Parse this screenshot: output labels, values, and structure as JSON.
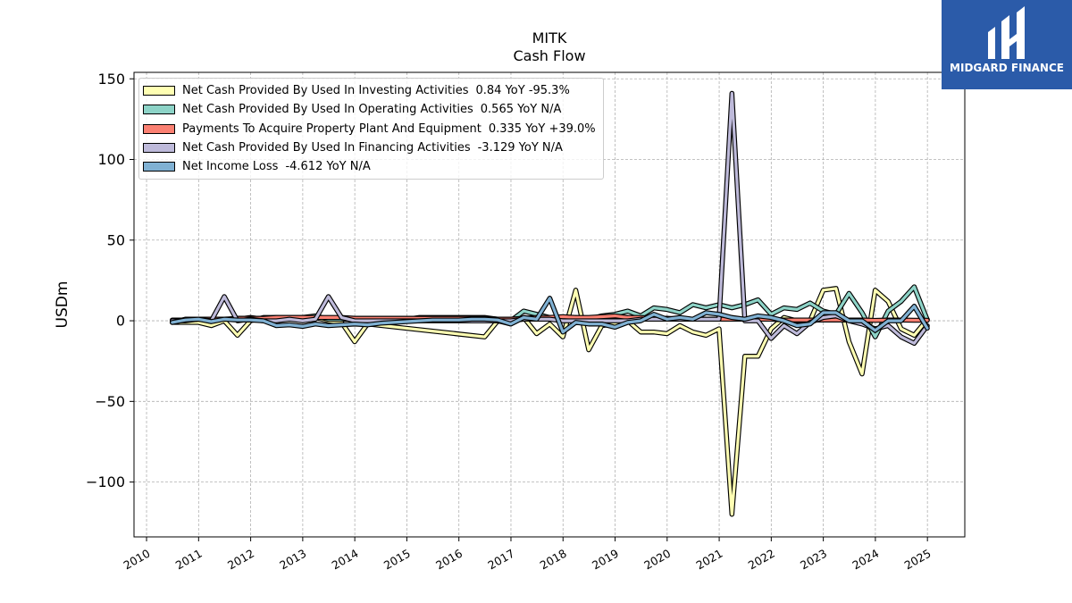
{
  "logo": {
    "text": "MIDGARD FINANCE",
    "background": "#2b5ba9",
    "icon": "midgard-m-icon"
  },
  "chart_data": {
    "type": "line",
    "title": "MITK",
    "subtitle": "Cash Flow",
    "ylabel": "USDm",
    "xlim": [
      "2009-10-05",
      "2025-09-20"
    ],
    "ylim": [
      -134,
      154
    ],
    "xtick_labels": [
      "2010",
      "2011",
      "2012",
      "2013",
      "2014",
      "2015",
      "2016",
      "2017",
      "2018",
      "2019",
      "2020",
      "2021",
      "2022",
      "2023",
      "2024",
      "2025"
    ],
    "yticks": [
      -100,
      -50,
      0,
      50,
      100,
      150
    ],
    "ytick_labels": [
      "−100",
      "−50",
      "0",
      "50",
      "100",
      "150"
    ],
    "grid": true,
    "legend_position": "top-left",
    "x": [
      "2010-06-30",
      "2010-09-30",
      "2010-12-31",
      "2011-03-31",
      "2011-06-30",
      "2011-09-30",
      "2011-12-31",
      "2012-03-31",
      "2012-06-30",
      "2012-09-30",
      "2012-12-31",
      "2013-03-31",
      "2013-06-30",
      "2013-09-30",
      "2013-12-31",
      "2014-03-31",
      "2014-06-30",
      "2014-09-30",
      "2014-12-31",
      "2015-03-31",
      "2015-06-30",
      "2015-09-30",
      "2015-12-31",
      "2016-03-31",
      "2016-06-30",
      "2016-09-30",
      "2016-12-31",
      "2017-03-31",
      "2017-06-30",
      "2017-09-30",
      "2017-12-31",
      "2018-03-31",
      "2018-06-30",
      "2018-09-30",
      "2018-12-31",
      "2019-03-31",
      "2019-06-30",
      "2019-09-30",
      "2019-12-31",
      "2020-03-31",
      "2020-06-30",
      "2020-09-30",
      "2020-12-31",
      "2021-03-31",
      "2021-06-30",
      "2021-09-30",
      "2021-12-31",
      "2022-03-31",
      "2022-06-30",
      "2022-09-30",
      "2022-12-31",
      "2023-03-31",
      "2023-06-30",
      "2023-09-30",
      "2023-12-31",
      "2024-03-31",
      "2024-06-30",
      "2024-09-30",
      "2024-12-31"
    ],
    "series": [
      {
        "name": "Net Cash Provided By Used In Investing Activities",
        "latest": "0.84 YoY -95.3%",
        "color": "#ffffb3",
        "values": [
          -1,
          -1,
          -1,
          -3,
          0,
          -9,
          0,
          2,
          2,
          1,
          2,
          2,
          0,
          -1,
          -13,
          -2,
          null,
          null,
          null,
          null,
          null,
          null,
          null,
          null,
          -10,
          0,
          -2,
          2,
          -8,
          -2,
          -10,
          19,
          -18,
          -3,
          -2,
          0,
          -7,
          -7,
          -8,
          -3,
          -7,
          -9,
          -5,
          -120,
          -22,
          -22,
          -5,
          2,
          0,
          0,
          19,
          20,
          -13,
          -33,
          19,
          12,
          -5,
          -9,
          0.84
        ]
      },
      {
        "name": "Net Cash Provided By Used In Operating Activities",
        "latest": "0.565 YoY N/A",
        "color": "#8dd3c7",
        "values": [
          -1,
          1,
          1,
          1,
          1,
          1,
          2,
          1,
          2,
          2,
          2,
          3,
          1,
          1,
          1,
          1,
          1,
          1,
          1,
          2,
          2,
          2,
          2,
          2,
          2,
          1,
          0,
          6,
          4,
          2,
          1,
          2,
          1,
          3,
          4,
          6,
          3,
          8,
          7,
          5,
          10,
          8,
          10,
          8,
          10,
          13,
          4,
          8,
          7,
          11,
          6,
          4,
          17,
          5,
          -10,
          6,
          12,
          21,
          0.565
        ]
      },
      {
        "name": "Payments To Acquire Property Plant And Equipment",
        "latest": "0.335 YoY +39.0%",
        "color": "#fb8072",
        "values": [
          0.5,
          0.5,
          1,
          1,
          1,
          1.5,
          1.5,
          1.5,
          2,
          2,
          2,
          2,
          2,
          2,
          1.5,
          1.5,
          1.5,
          1.5,
          1.5,
          1.5,
          1.5,
          1.5,
          1.5,
          1.5,
          1.5,
          1,
          1,
          1.5,
          2,
          2,
          2.5,
          2,
          2,
          2.5,
          3,
          2,
          2,
          1.5,
          1.5,
          1,
          1,
          1,
          1,
          1,
          1,
          1,
          1,
          0.5,
          0.5,
          0.5,
          0.5,
          0.5,
          0.5,
          0.5,
          0.24,
          0.4,
          0.4,
          0.3,
          0.335
        ]
      },
      {
        "name": "Net Cash Provided By Used In Financing Activities",
        "latest": "-3.129 YoY N/A",
        "color": "#bebada",
        "values": [
          0,
          0,
          1,
          0,
          15,
          0,
          1,
          0,
          0,
          1,
          0,
          1,
          15,
          2,
          0,
          0,
          0,
          0,
          0,
          0,
          0,
          0,
          0,
          0,
          0,
          0,
          0,
          1,
          1,
          1,
          0,
          0,
          0,
          0,
          0,
          0,
          1,
          1,
          1,
          1,
          1,
          1,
          1,
          141,
          0,
          0,
          -11,
          -3,
          -8,
          -1,
          2,
          3,
          0,
          -2,
          -5,
          -3,
          -10,
          -14,
          -3.129
        ]
      },
      {
        "name": "Net Income Loss",
        "latest": "-4.612 YoY N/A",
        "color": "#80b1d3",
        "values": [
          -1,
          0.5,
          1,
          -0.5,
          1,
          0.5,
          0.5,
          0,
          -3,
          -2.5,
          -3.5,
          -2,
          -3,
          -2.5,
          -2,
          -2.5,
          -1.5,
          -1,
          -0.5,
          0,
          0.5,
          0.5,
          0.5,
          1,
          1,
          0.5,
          -2,
          2,
          1,
          14,
          -7,
          -1,
          -2,
          -2,
          -4,
          -1,
          0,
          4,
          1,
          2,
          1,
          5,
          4,
          2,
          1,
          3,
          2,
          0,
          -3,
          -2,
          5,
          5,
          0,
          0,
          -6,
          0,
          0,
          9,
          -4.612
        ]
      }
    ]
  }
}
